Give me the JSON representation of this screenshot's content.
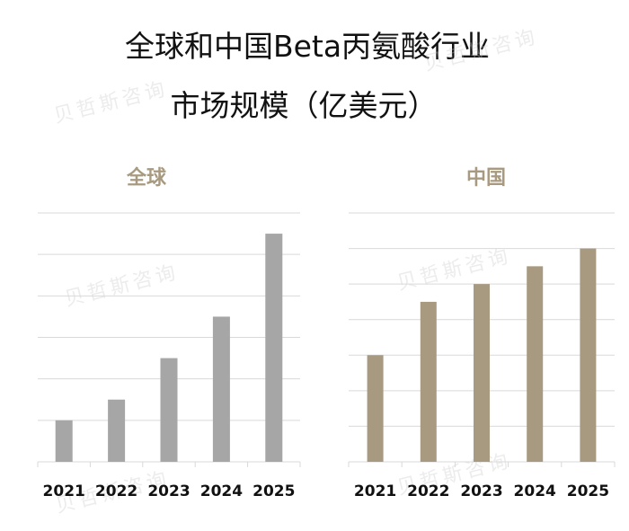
{
  "title_line1": "全球和中国Beta丙氨酸行业",
  "title_line2": "市场规模（亿美元）",
  "chart_data": [
    {
      "type": "bar",
      "title": "全球",
      "categories": [
        "2021",
        "2022",
        "2023",
        "2024",
        "2025"
      ],
      "values": [
        1.0,
        1.5,
        2.5,
        3.5,
        5.5
      ],
      "ylim": [
        0,
        6
      ],
      "grid": true,
      "color": "#a6a6a6"
    },
    {
      "type": "bar",
      "title": "中国",
      "categories": [
        "2021",
        "2022",
        "2023",
        "2024",
        "2025"
      ],
      "values": [
        3.0,
        4.5,
        5.0,
        5.5,
        6.0
      ],
      "ylim": [
        0,
        7
      ],
      "grid": true,
      "color": "#a89a80"
    }
  ],
  "watermark": "贝哲斯咨询"
}
